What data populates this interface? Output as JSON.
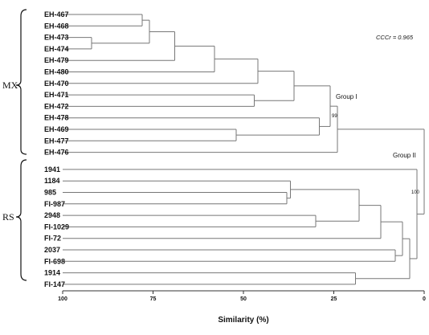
{
  "cophenetic": "CCCr = 0.965",
  "x_axis": {
    "title": "Similarity (%)",
    "ticks": [
      "100",
      "75",
      "50",
      "25",
      "0"
    ]
  },
  "brace_groups": [
    {
      "label": "MX",
      "leaf_range": [
        0,
        13
      ]
    },
    {
      "label": "RS",
      "leaf_range": [
        14,
        24
      ]
    }
  ],
  "group_labels": {
    "group1": "Group I",
    "group2": "Group II"
  },
  "bootstrap": {
    "group1": "99",
    "group2": "100"
  },
  "leaves": [
    "EH-467",
    "EH-468",
    "EH-473",
    "EH-474",
    "EH-479",
    "EH-480",
    "EH-470",
    "EH-471",
    "EH-472",
    "EH-478",
    "EH-469",
    "EH-477",
    "EH-476",
    "1941",
    "1184",
    "985",
    "FI-987",
    "2948",
    "FI-1029",
    "FI-72",
    "2037",
    "FI-698",
    "1914",
    "FI-147"
  ],
  "merges": [
    {
      "a": "L2",
      "b": "L3",
      "sim": 92
    },
    {
      "a": "L0",
      "b": "L1",
      "sim": 78
    },
    {
      "a": "m1",
      "b": "m0",
      "sim": 76
    },
    {
      "a": "m2",
      "b": "L4",
      "sim": 69
    },
    {
      "a": "m3",
      "b": "L5",
      "sim": 58
    },
    {
      "a": "m4",
      "b": "L6",
      "sim": 46
    },
    {
      "a": "L7",
      "b": "L8",
      "sim": 47
    },
    {
      "a": "L10",
      "b": "L11",
      "sim": 52
    },
    {
      "a": "m5",
      "b": "m6",
      "sim": 36
    },
    {
      "a": "m7",
      "b": "L9",
      "sim": 29
    },
    {
      "a": "m8",
      "b": "m9",
      "sim": 26
    },
    {
      "a": "m10",
      "b": "L12",
      "sim": 24
    },
    {
      "a": "L15",
      "b": "L16",
      "sim": 38
    },
    {
      "a": "L14",
      "b": "m12",
      "sim": 37
    },
    {
      "a": "L17",
      "b": "L18",
      "sim": 30
    },
    {
      "a": "m13",
      "b": "m14",
      "sim": 18
    },
    {
      "a": "m15",
      "b": "L19",
      "sim": 12
    },
    {
      "a": "L20",
      "b": "L21",
      "sim": 8
    },
    {
      "a": "m16",
      "b": "m17",
      "sim": 6
    },
    {
      "a": "L22",
      "b": "L23",
      "sim": 19
    },
    {
      "a": "m18",
      "b": "m19",
      "sim": 4
    },
    {
      "a": "L13",
      "b": "m20",
      "sim": 2
    },
    {
      "a": "m11",
      "b": "m21",
      "sim": 0
    }
  ]
}
